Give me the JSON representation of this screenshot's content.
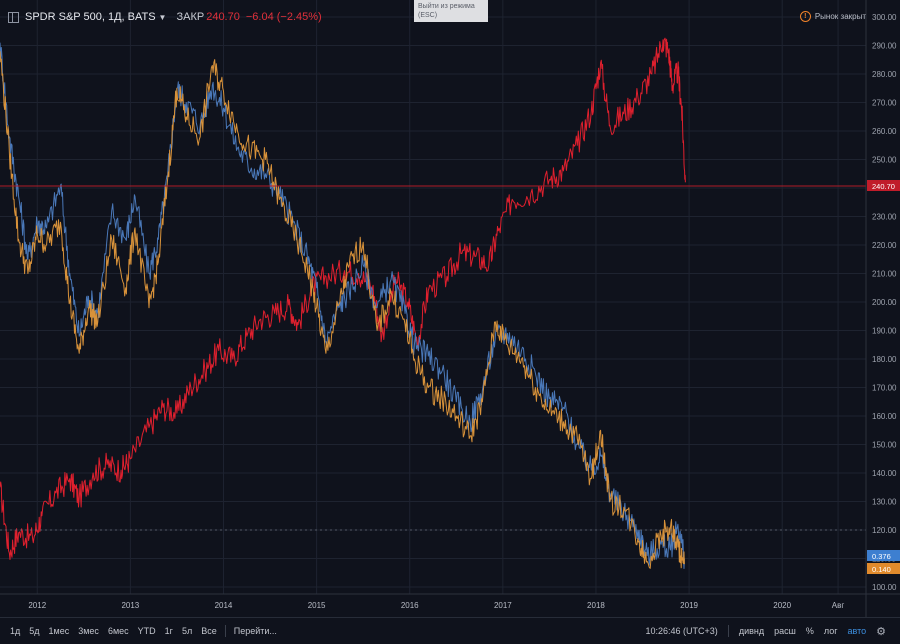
{
  "header": {
    "symbol": "SPDR S&P 500, 1Д, BATS",
    "close_label": "ЗАКР",
    "close_value": "240.70",
    "change": "−6.04 (−2.45%)"
  },
  "exit_tooltip": {
    "line1": "Выйти из режима",
    "line2": "(ESC)"
  },
  "market_status": "Рынок закрыт",
  "toolbar": {
    "ranges": [
      "1д",
      "5д",
      "1мес",
      "3мес",
      "6мес",
      "YTD",
      "1г",
      "5л",
      "Все"
    ],
    "goto": "Перейти...",
    "time": "10:26:46 (UTC+3)",
    "dividends": "дивнд",
    "ext": "расш",
    "percent": "%",
    "log": "лог",
    "auto": "авто"
  },
  "colors": {
    "background": "#0f121c",
    "red_series": "#e0202e",
    "blue_series": "#4a78b8",
    "orange_series": "#d8923a",
    "grid": "#1e2330"
  },
  "chart_data": {
    "type": "line",
    "title": "SPDR S&P 500, 1Д, BATS",
    "ylim": [
      100,
      300
    ],
    "x_range": [
      2011.6,
      2020.9
    ],
    "y_ticks": [
      100,
      110,
      120,
      130,
      140,
      150,
      160,
      170,
      180,
      190,
      200,
      210,
      220,
      230,
      240,
      250,
      260,
      270,
      280,
      290,
      300
    ],
    "x_ticks": [
      {
        "label": "2012",
        "x": 2012
      },
      {
        "label": "2013",
        "x": 2013
      },
      {
        "label": "2014",
        "x": 2014
      },
      {
        "label": "2015",
        "x": 2015
      },
      {
        "label": "2016",
        "x": 2016
      },
      {
        "label": "2017",
        "x": 2017
      },
      {
        "label": "2018",
        "x": 2018
      },
      {
        "label": "2019",
        "x": 2019
      },
      {
        "label": "2020",
        "x": 2020
      },
      {
        "label": "Авг",
        "x": 2020.6
      }
    ],
    "price_line": {
      "value": 240.7,
      "label": "240.70"
    },
    "dotted_line": {
      "value": 120
    },
    "grid": true,
    "series": [
      {
        "color": "#e0202e",
        "end_label": "",
        "points": [
          [
            2011.6,
            135
          ],
          [
            2011.7,
            112
          ],
          [
            2011.8,
            119
          ],
          [
            2011.95,
            117
          ],
          [
            2012.05,
            125
          ],
          [
            2012.2,
            133
          ],
          [
            2012.35,
            138
          ],
          [
            2012.45,
            131
          ],
          [
            2012.6,
            140
          ],
          [
            2012.75,
            143
          ],
          [
            2012.9,
            141
          ],
          [
            2013.0,
            145
          ],
          [
            2013.2,
            156
          ],
          [
            2013.35,
            163
          ],
          [
            2013.5,
            161
          ],
          [
            2013.65,
            170
          ],
          [
            2013.8,
            176
          ],
          [
            2013.95,
            183
          ],
          [
            2014.1,
            180
          ],
          [
            2014.25,
            188
          ],
          [
            2014.4,
            194
          ],
          [
            2014.55,
            196
          ],
          [
            2014.7,
            199
          ],
          [
            2014.8,
            192
          ],
          [
            2014.95,
            205
          ],
          [
            2015.1,
            209
          ],
          [
            2015.3,
            211
          ],
          [
            2015.45,
            210
          ],
          [
            2015.6,
            205
          ],
          [
            2015.7,
            188
          ],
          [
            2015.85,
            208
          ],
          [
            2015.98,
            200
          ],
          [
            2016.08,
            186
          ],
          [
            2016.2,
            204
          ],
          [
            2016.4,
            209
          ],
          [
            2016.55,
            217
          ],
          [
            2016.7,
            216
          ],
          [
            2016.85,
            213
          ],
          [
            2016.95,
            225
          ],
          [
            2017.1,
            236
          ],
          [
            2017.3,
            238
          ],
          [
            2017.5,
            243
          ],
          [
            2017.65,
            246
          ],
          [
            2017.8,
            255
          ],
          [
            2017.95,
            267
          ],
          [
            2018.05,
            284
          ],
          [
            2018.15,
            262
          ],
          [
            2018.3,
            266
          ],
          [
            2018.45,
            272
          ],
          [
            2018.6,
            280
          ],
          [
            2018.72,
            292
          ],
          [
            2018.78,
            288
          ],
          [
            2018.82,
            276
          ],
          [
            2018.88,
            281
          ],
          [
            2018.92,
            268
          ],
          [
            2018.96,
            242
          ]
        ]
      },
      {
        "color": "#4a78b8",
        "end_label": "0.376",
        "points": [
          [
            2011.6,
            291
          ],
          [
            2011.7,
            258
          ],
          [
            2011.8,
            237
          ],
          [
            2011.9,
            215
          ],
          [
            2012.0,
            228
          ],
          [
            2012.1,
            226
          ],
          [
            2012.25,
            241
          ],
          [
            2012.35,
            210
          ],
          [
            2012.45,
            188
          ],
          [
            2012.55,
            202
          ],
          [
            2012.65,
            196
          ],
          [
            2012.8,
            232
          ],
          [
            2012.95,
            222
          ],
          [
            2013.05,
            237
          ],
          [
            2013.2,
            210
          ],
          [
            2013.3,
            222
          ],
          [
            2013.4,
            244
          ],
          [
            2013.5,
            275
          ],
          [
            2013.6,
            270
          ],
          [
            2013.75,
            262
          ],
          [
            2013.88,
            276
          ],
          [
            2014.0,
            268
          ],
          [
            2014.15,
            254
          ],
          [
            2014.3,
            247
          ],
          [
            2014.45,
            245
          ],
          [
            2014.6,
            238
          ],
          [
            2014.75,
            228
          ],
          [
            2014.9,
            216
          ],
          [
            2015.0,
            205
          ],
          [
            2015.1,
            186
          ],
          [
            2015.25,
            199
          ],
          [
            2015.35,
            204
          ],
          [
            2015.5,
            213
          ],
          [
            2015.65,
            198
          ],
          [
            2015.8,
            208
          ],
          [
            2015.95,
            196
          ],
          [
            2016.05,
            185
          ],
          [
            2016.2,
            181
          ],
          [
            2016.35,
            176
          ],
          [
            2016.5,
            165
          ],
          [
            2016.65,
            158
          ],
          [
            2016.78,
            169
          ],
          [
            2016.92,
            188
          ],
          [
            2017.05,
            189
          ],
          [
            2017.2,
            183
          ],
          [
            2017.35,
            175
          ],
          [
            2017.5,
            166
          ],
          [
            2017.65,
            163
          ],
          [
            2017.8,
            150
          ],
          [
            2017.95,
            141
          ],
          [
            2018.05,
            146
          ],
          [
            2018.15,
            133
          ],
          [
            2018.3,
            126
          ],
          [
            2018.45,
            120
          ],
          [
            2018.55,
            111
          ],
          [
            2018.7,
            115
          ],
          [
            2018.8,
            113
          ],
          [
            2018.88,
            122
          ],
          [
            2018.95,
            110
          ]
        ]
      },
      {
        "color": "#d8923a",
        "end_label": "0.140",
        "points": [
          [
            2011.6,
            288
          ],
          [
            2011.7,
            253
          ],
          [
            2011.8,
            222
          ],
          [
            2011.9,
            210
          ],
          [
            2012.0,
            224
          ],
          [
            2012.1,
            220
          ],
          [
            2012.25,
            228
          ],
          [
            2012.35,
            200
          ],
          [
            2012.45,
            182
          ],
          [
            2012.55,
            198
          ],
          [
            2012.65,
            193
          ],
          [
            2012.8,
            222
          ],
          [
            2012.95,
            205
          ],
          [
            2013.05,
            226
          ],
          [
            2013.2,
            198
          ],
          [
            2013.3,
            214
          ],
          [
            2013.4,
            243
          ],
          [
            2013.5,
            275
          ],
          [
            2013.6,
            265
          ],
          [
            2013.75,
            258
          ],
          [
            2013.88,
            283
          ],
          [
            2014.0,
            274
          ],
          [
            2014.15,
            260
          ],
          [
            2014.3,
            253
          ],
          [
            2014.45,
            250
          ],
          [
            2014.6,
            236
          ],
          [
            2014.75,
            225
          ],
          [
            2014.9,
            212
          ],
          [
            2015.0,
            198
          ],
          [
            2015.1,
            182
          ],
          [
            2015.25,
            200
          ],
          [
            2015.35,
            213
          ],
          [
            2015.5,
            221
          ],
          [
            2015.65,
            190
          ],
          [
            2015.8,
            203
          ],
          [
            2015.95,
            192
          ],
          [
            2016.05,
            180
          ],
          [
            2016.2,
            170
          ],
          [
            2016.35,
            166
          ],
          [
            2016.5,
            160
          ],
          [
            2016.65,
            153
          ],
          [
            2016.78,
            165
          ],
          [
            2016.92,
            193
          ],
          [
            2017.05,
            185
          ],
          [
            2017.2,
            180
          ],
          [
            2017.35,
            170
          ],
          [
            2017.5,
            162
          ],
          [
            2017.65,
            158
          ],
          [
            2017.8,
            152
          ],
          [
            2017.95,
            138
          ],
          [
            2018.05,
            155
          ],
          [
            2018.15,
            130
          ],
          [
            2018.3,
            128
          ],
          [
            2018.45,
            117
          ],
          [
            2018.55,
            109
          ],
          [
            2018.7,
            118
          ],
          [
            2018.8,
            121
          ],
          [
            2018.88,
            114
          ],
          [
            2018.95,
            108
          ]
        ]
      }
    ]
  }
}
